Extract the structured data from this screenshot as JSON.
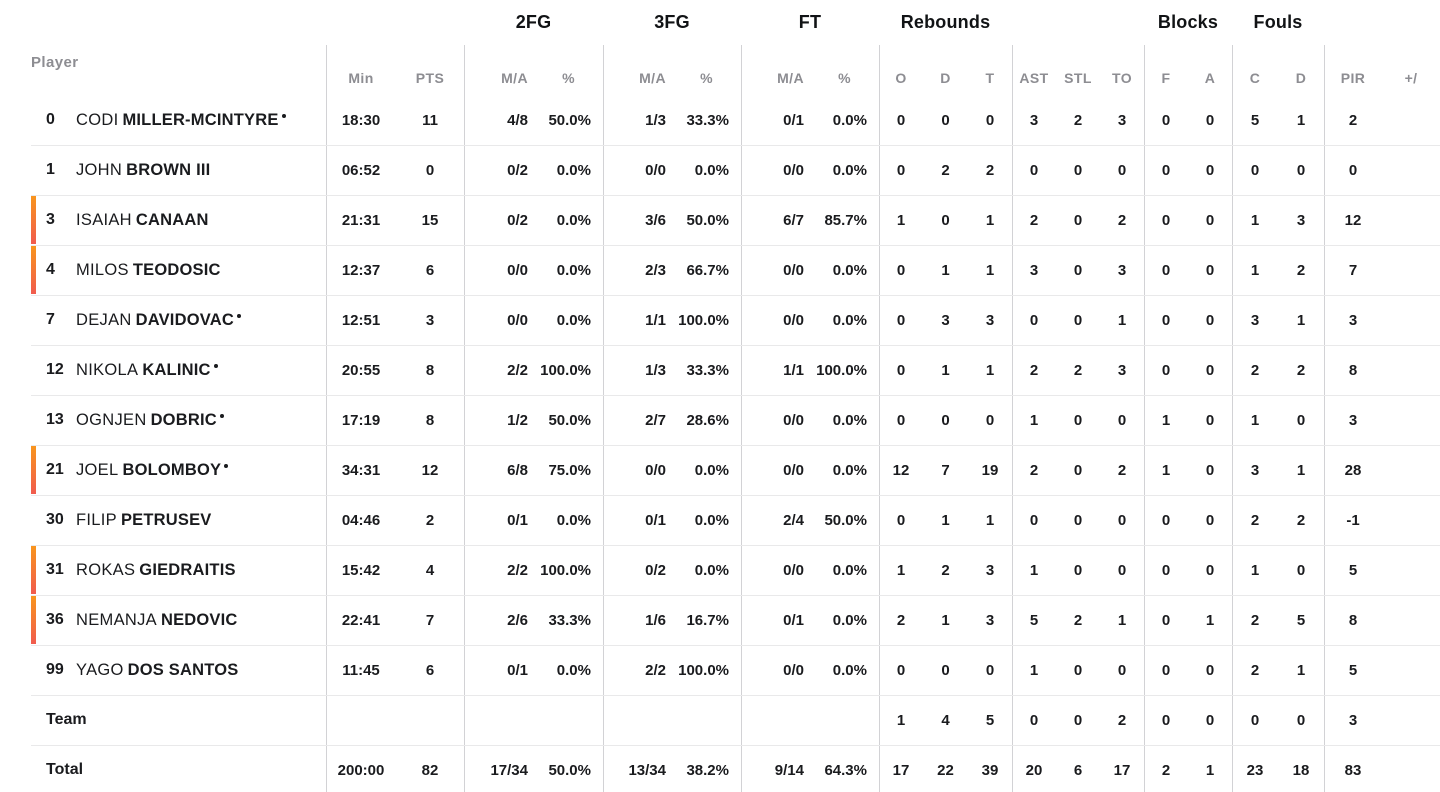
{
  "table": {
    "header": {
      "player_label": "Player",
      "groups": {
        "fg2": "2FG",
        "fg3": "3FG",
        "ft": "FT",
        "rebounds": "Rebounds",
        "blocks": "Blocks",
        "fouls": "Fouls"
      },
      "sub": {
        "min": "Min",
        "pts": "PTS",
        "ma": "M/A",
        "pct": "%",
        "o": "O",
        "d": "D",
        "t": "T",
        "ast": "AST",
        "stl": "STL",
        "to": "TO",
        "f": "F",
        "a": "A",
        "c": "C",
        "d2": "D",
        "pir": "PIR",
        "plusminus": "+/"
      }
    },
    "players": [
      {
        "number": "0",
        "first": "CODI",
        "last": "MILLER-MCINTYRE",
        "starter": true,
        "on_court": false,
        "stats": [
          "18:30",
          "11",
          "4/8",
          "50.0%",
          "1/3",
          "33.3%",
          "0/1",
          "0.0%",
          "0",
          "0",
          "0",
          "3",
          "2",
          "3",
          "0",
          "0",
          "5",
          "1",
          "2"
        ]
      },
      {
        "number": "1",
        "first": "JOHN",
        "last": "BROWN III",
        "starter": false,
        "on_court": false,
        "stats": [
          "06:52",
          "0",
          "0/2",
          "0.0%",
          "0/0",
          "0.0%",
          "0/0",
          "0.0%",
          "0",
          "2",
          "2",
          "0",
          "0",
          "0",
          "0",
          "0",
          "0",
          "0",
          "0"
        ]
      },
      {
        "number": "3",
        "first": "ISAIAH",
        "last": "CANAAN",
        "starter": false,
        "on_court": true,
        "stats": [
          "21:31",
          "15",
          "0/2",
          "0.0%",
          "3/6",
          "50.0%",
          "6/7",
          "85.7%",
          "1",
          "0",
          "1",
          "2",
          "0",
          "2",
          "0",
          "0",
          "1",
          "3",
          "12"
        ]
      },
      {
        "number": "4",
        "first": "MILOS",
        "last": "TEODOSIC",
        "starter": false,
        "on_court": true,
        "stats": [
          "12:37",
          "6",
          "0/0",
          "0.0%",
          "2/3",
          "66.7%",
          "0/0",
          "0.0%",
          "0",
          "1",
          "1",
          "3",
          "0",
          "3",
          "0",
          "0",
          "1",
          "2",
          "7"
        ]
      },
      {
        "number": "7",
        "first": "DEJAN",
        "last": "DAVIDOVAC",
        "starter": true,
        "on_court": false,
        "stats": [
          "12:51",
          "3",
          "0/0",
          "0.0%",
          "1/1",
          "100.0%",
          "0/0",
          "0.0%",
          "0",
          "3",
          "3",
          "0",
          "0",
          "1",
          "0",
          "0",
          "3",
          "1",
          "3"
        ]
      },
      {
        "number": "12",
        "first": "NIKOLA",
        "last": "KALINIC",
        "starter": true,
        "on_court": false,
        "stats": [
          "20:55",
          "8",
          "2/2",
          "100.0%",
          "1/3",
          "33.3%",
          "1/1",
          "100.0%",
          "0",
          "1",
          "1",
          "2",
          "2",
          "3",
          "0",
          "0",
          "2",
          "2",
          "8"
        ]
      },
      {
        "number": "13",
        "first": "OGNJEN",
        "last": "DOBRIC",
        "starter": true,
        "on_court": false,
        "stats": [
          "17:19",
          "8",
          "1/2",
          "50.0%",
          "2/7",
          "28.6%",
          "0/0",
          "0.0%",
          "0",
          "0",
          "0",
          "1",
          "0",
          "0",
          "1",
          "0",
          "1",
          "0",
          "3"
        ]
      },
      {
        "number": "21",
        "first": "JOEL",
        "last": "BOLOMBOY",
        "starter": true,
        "on_court": true,
        "stats": [
          "34:31",
          "12",
          "6/8",
          "75.0%",
          "0/0",
          "0.0%",
          "0/0",
          "0.0%",
          "12",
          "7",
          "19",
          "2",
          "0",
          "2",
          "1",
          "0",
          "3",
          "1",
          "28"
        ]
      },
      {
        "number": "30",
        "first": "FILIP",
        "last": "PETRUSEV",
        "starter": false,
        "on_court": false,
        "stats": [
          "04:46",
          "2",
          "0/1",
          "0.0%",
          "0/1",
          "0.0%",
          "2/4",
          "50.0%",
          "0",
          "1",
          "1",
          "0",
          "0",
          "0",
          "0",
          "0",
          "2",
          "2",
          "-1"
        ]
      },
      {
        "number": "31",
        "first": "ROKAS",
        "last": "GIEDRAITIS",
        "starter": false,
        "on_court": true,
        "stats": [
          "15:42",
          "4",
          "2/2",
          "100.0%",
          "0/2",
          "0.0%",
          "0/0",
          "0.0%",
          "1",
          "2",
          "3",
          "1",
          "0",
          "0",
          "0",
          "0",
          "1",
          "0",
          "5"
        ]
      },
      {
        "number": "36",
        "first": "NEMANJA",
        "last": "NEDOVIC",
        "starter": false,
        "on_court": true,
        "stats": [
          "22:41",
          "7",
          "2/6",
          "33.3%",
          "1/6",
          "16.7%",
          "0/1",
          "0.0%",
          "2",
          "1",
          "3",
          "5",
          "2",
          "1",
          "0",
          "1",
          "2",
          "5",
          "8"
        ]
      },
      {
        "number": "99",
        "first": "YAGO",
        "last": "DOS SANTOS",
        "starter": false,
        "on_court": false,
        "stats": [
          "11:45",
          "6",
          "0/1",
          "0.0%",
          "2/2",
          "100.0%",
          "0/0",
          "0.0%",
          "0",
          "0",
          "0",
          "1",
          "0",
          "0",
          "0",
          "0",
          "2",
          "1",
          "5"
        ]
      }
    ],
    "team_row": {
      "label": "Team",
      "stats": [
        "",
        "",
        "",
        "",
        "",
        "",
        "",
        "",
        "1",
        "4",
        "5",
        "0",
        "0",
        "2",
        "0",
        "0",
        "0",
        "0",
        "3"
      ]
    },
    "total_row": {
      "label": "Total",
      "stats": [
        "200:00",
        "82",
        "17/34",
        "50.0%",
        "13/34",
        "38.2%",
        "9/14",
        "64.3%",
        "17",
        "22",
        "39",
        "20",
        "6",
        "17",
        "2",
        "1",
        "23",
        "18",
        "83"
      ]
    }
  },
  "colors": {
    "on_court_bar_top": "#F8951D",
    "on_court_bar_bottom": "#F15B4E",
    "group_header_text": "#111315",
    "sub_header_text": "#8D8D92",
    "data_text": "#1A1B1E",
    "grid_vertical": "#D2D2D5",
    "grid_horizontal": "#E9E9EA"
  }
}
